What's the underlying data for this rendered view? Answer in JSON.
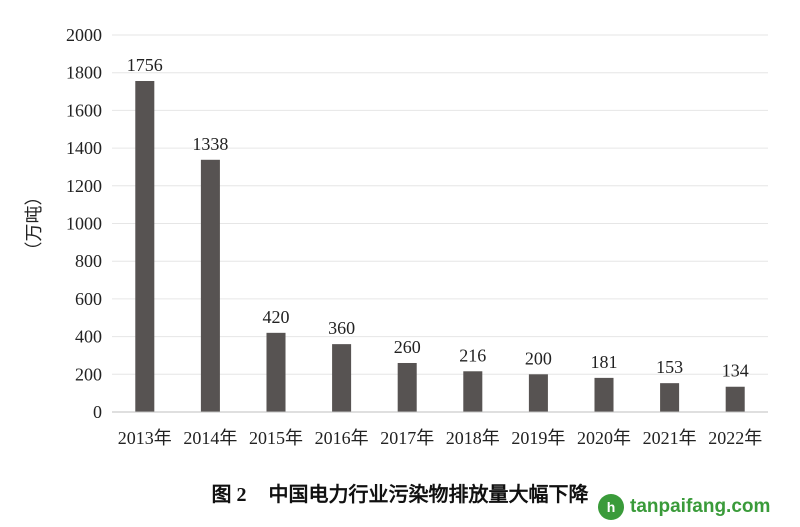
{
  "chart_data": {
    "type": "bar",
    "categories": [
      "2013年",
      "2014年",
      "2015年",
      "2016年",
      "2017年",
      "2018年",
      "2019年",
      "2020年",
      "2021年",
      "2022年"
    ],
    "values": [
      1756,
      1338,
      420,
      360,
      260,
      216,
      200,
      181,
      153,
      134
    ],
    "ylabel": "（万吨）",
    "ylim": [
      0,
      2000
    ],
    "yticks": [
      0,
      200,
      400,
      600,
      800,
      1000,
      1200,
      1400,
      1600,
      1800,
      2000
    ],
    "grid": true,
    "bar_color": "#575352",
    "grid_color": "#e6e6e6"
  },
  "caption": {
    "figure_no": "图 2",
    "title": "中国电力行业污染物排放量大幅下降"
  },
  "watermark": {
    "icon": "h",
    "text": "tanpaifang.com"
  }
}
